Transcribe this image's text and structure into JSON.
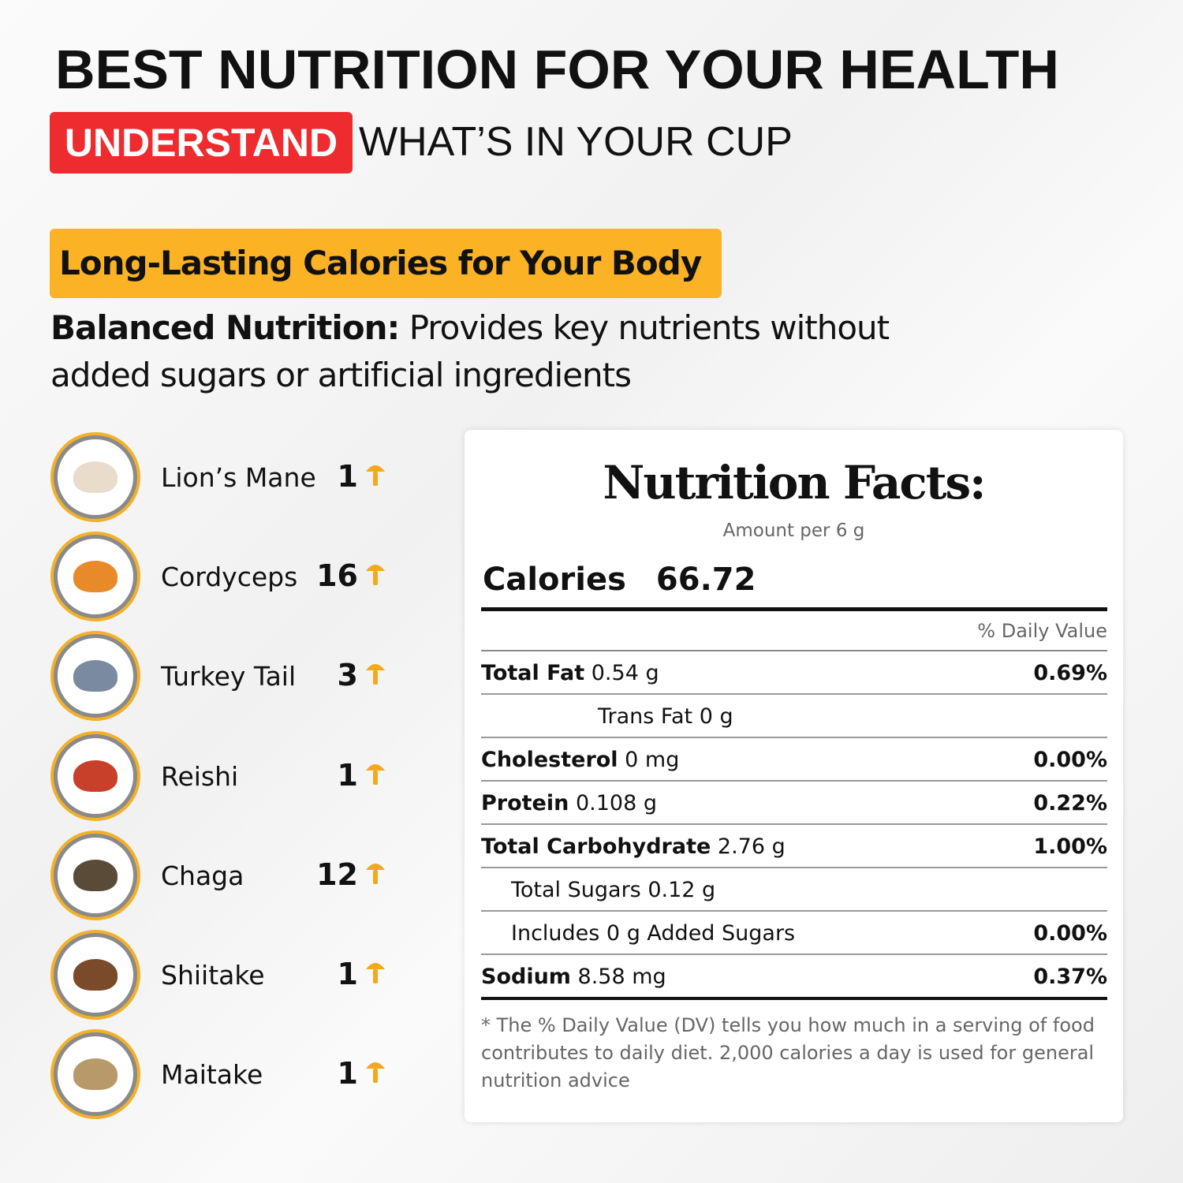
{
  "header": {
    "title": "BEST NUTRITION FOR YOUR HEALTH",
    "highlight": "UNDERSTAND",
    "subtitle": "WHAT’S IN YOUR CUP"
  },
  "section": {
    "badge": "Long-Lasting Calories for Your Body",
    "lead": "Balanced Nutrition:",
    "text": "Provides key nutrients without added sugars or artificial ingredients"
  },
  "mushrooms": [
    {
      "name": "Lion’s Mane",
      "count": 1
    },
    {
      "name": "Cordyceps",
      "count": 16
    },
    {
      "name": "Turkey Tail",
      "count": 3
    },
    {
      "name": "Reishi",
      "count": 1
    },
    {
      "name": "Chaga",
      "count": 12
    },
    {
      "name": "Shiitake",
      "count": 1
    },
    {
      "name": "Maitake",
      "count": 1
    }
  ],
  "facts": {
    "title": "Nutrition Facts:",
    "serving": "Amount per 6 g",
    "calories_label": "Calories",
    "calories": "66.72",
    "dv_header": "% Daily Value",
    "rows": [
      {
        "label": "Total Fat",
        "amount": "0.54 g",
        "dv": "0.69%"
      },
      {
        "amount": "Trans Fat 0 g"
      },
      {
        "label": "Cholesterol",
        "amount": "0 mg",
        "dv": "0.00%"
      },
      {
        "label": "Protein",
        "amount": "0.108 g",
        "dv": "0.22%"
      },
      {
        "label": "Total Carbohydrate",
        "amount": "2.76 g",
        "dv": "1.00%"
      },
      {
        "amount": "Total Sugars 0.12 g"
      },
      {
        "amount": "Includes 0 g Added Sugars",
        "dv": "0.00%"
      },
      {
        "label": "Sodium",
        "amount": "8.58 mg",
        "dv": "0.37%"
      }
    ],
    "footnote": "*  The % Daily Value (DV) tells you how much in a serving of food contributes to daily diet. 2,000 calories a day is used for general nutrition advice"
  }
}
